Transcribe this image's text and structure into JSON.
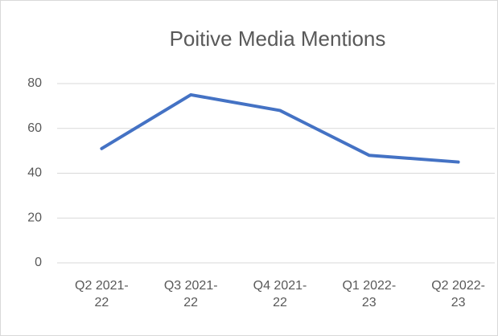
{
  "chart_data": {
    "type": "line",
    "title": "Poitive Media Mentions",
    "categories": [
      "Q2 2021-22",
      "Q3 2021-22",
      "Q4 2021-22",
      "Q1 2022-23",
      "Q2 2022-23"
    ],
    "values": [
      51,
      75,
      68,
      48,
      45
    ],
    "color": "#4472c4",
    "ylim": [
      0,
      80
    ],
    "yticks": [
      0,
      20,
      40,
      60,
      80
    ],
    "grid": true
  }
}
